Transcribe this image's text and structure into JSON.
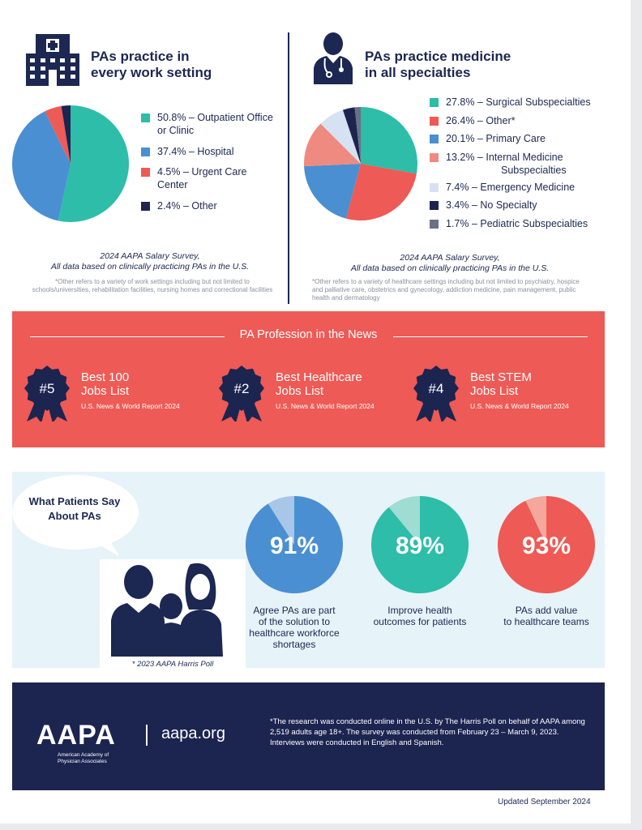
{
  "work_setting": {
    "title_line1": "PAs practice in",
    "title_line2": "every work setting",
    "source_line1": "2024 AAPA Salary Survey,",
    "source_line2": "All data based on clinically practicing PAs in the U.S.",
    "footnote": "*Other refers to a variety of work settings including but not limited to schools/universities, rehabilitation facilities, nursing homes and correctional facilities",
    "icon": "hospital-icon"
  },
  "specialties": {
    "title_line1": "PAs practice medicine",
    "title_line2": "in all specialties",
    "source_line1": "2024 AAPA Salary Survey,",
    "source_line2": "All data based on clinically practicing PAs in the U.S.",
    "footnote": "*Other refers to a variety of healthcare settings including but not limited to psychiatry, hospice and palliative care, obstetrics and gynecology, addiction medicine, pain management, public health and dermatology",
    "icon": "doctor-icon"
  },
  "chart_data": [
    {
      "type": "pie",
      "title": "",
      "slices": [
        {
          "label": "50.8% – Outpatient Office or Clinic",
          "value": 50.8,
          "color": "#2dbda8"
        },
        {
          "label": "37.4% – Hospital",
          "value": 37.4,
          "color": "#4a8fd1"
        },
        {
          "label": "4.5% – Urgent Care Center",
          "value": 4.5,
          "color": "#ee5a55"
        },
        {
          "label": "2.4% – Other",
          "value": 2.4,
          "color": "#1c2450"
        }
      ]
    },
    {
      "type": "pie",
      "title": "",
      "slices": [
        {
          "label": "27.8% – Surgical Subspecialties",
          "value": 27.8,
          "color": "#2dbda8"
        },
        {
          "label": "26.4% – Other*",
          "value": 26.4,
          "color": "#ee5a55"
        },
        {
          "label": "20.1% – Primary Care",
          "value": 20.1,
          "color": "#4a8fd1"
        },
        {
          "label": "13.2% – Internal Medicine Subspecialties",
          "value": 13.2,
          "color": "#ef8a80"
        },
        {
          "label": "7.4% – Emergency Medicine",
          "value": 7.4,
          "color": "#d6e2f2"
        },
        {
          "label": "3.4% – No Specialty",
          "value": 3.4,
          "color": "#1c2450"
        },
        {
          "label": "1.7% – Pediatric Subspecialties",
          "value": 1.7,
          "color": "#6a7185"
        }
      ]
    },
    {
      "type": "pie",
      "title": "",
      "slices": [
        {
          "label": "91%",
          "value": 91,
          "color": "#4a8fd1"
        },
        {
          "label": "",
          "value": 9,
          "color": "#a8c6e8"
        }
      ]
    },
    {
      "type": "pie",
      "title": "",
      "slices": [
        {
          "label": "89%",
          "value": 89,
          "color": "#2dbda8"
        },
        {
          "label": "",
          "value": 11,
          "color": "#9fdcd2"
        }
      ]
    },
    {
      "type": "pie",
      "title": "",
      "slices": [
        {
          "label": "93%",
          "value": 93,
          "color": "#ee5a55"
        },
        {
          "label": "",
          "value": 7,
          "color": "#f5a79b"
        }
      ]
    }
  ],
  "legend_left": [
    {
      "line1": "50.8% – Outpatient Office",
      "line2": "or Clinic"
    },
    {
      "line1": "37.4% – Hospital",
      "line2": ""
    },
    {
      "line1": "4.5% – Urgent Care",
      "line2": "Center"
    },
    {
      "line1": "2.4% – Other",
      "line2": ""
    }
  ],
  "legend_right": [
    {
      "line1": "27.8% – Surgical Subspecialties",
      "line2": ""
    },
    {
      "line1": "26.4% – Other*",
      "line2": ""
    },
    {
      "line1": "20.1% – Primary Care",
      "line2": ""
    },
    {
      "line1": "13.2% – Internal Medicine",
      "line2": "Subspecialties"
    },
    {
      "line1": "7.4% – Emergency Medicine",
      "line2": ""
    },
    {
      "line1": "3.4% – No Specialty",
      "line2": ""
    },
    {
      "line1": "1.7% – Pediatric Subspecialties",
      "line2": ""
    }
  ],
  "news": {
    "title": "PA Profession in the News",
    "awards": [
      {
        "rank": "#5",
        "line1": "Best 100",
        "line2": "Jobs List",
        "source": "U.S. News & World Report 2024"
      },
      {
        "rank": "#2",
        "line1": "Best Healthcare",
        "line2": "Jobs List",
        "source": "U.S. News & World Report 2024"
      },
      {
        "rank": "#4",
        "line1": "Best STEM",
        "line2": "Jobs List",
        "source": "U.S. News & World Report 2024"
      }
    ],
    "badge_icon": "award-ribbon-icon"
  },
  "patients": {
    "bubble_line1": "What Patients Say",
    "bubble_line2": "About PAs",
    "poll": "* 2023 AAPA Harris Poll",
    "family_icon": "family-icon",
    "stats": [
      {
        "caption_lines": [
          "Agree PAs are part",
          "of the solution to",
          "healthcare workforce",
          "shortages"
        ]
      },
      {
        "caption_lines": [
          "Improve health",
          "outcomes for patients"
        ]
      },
      {
        "caption_lines": [
          "PAs add value",
          "to healthcare teams"
        ]
      }
    ]
  },
  "footer": {
    "logo": "AAPA",
    "logo_sub_line1": "American Academy of",
    "logo_sub_line2": "Physician Associates",
    "url": "aapa.org",
    "note": "*The research was conducted online in the U.S. by The Harris Poll on behalf of AAPA among 2,519 adults age 18+. The survey was conducted from February 23 – March 9, 2023. Interviews were conducted in English and Spanish."
  },
  "updated": "Updated September 2024"
}
